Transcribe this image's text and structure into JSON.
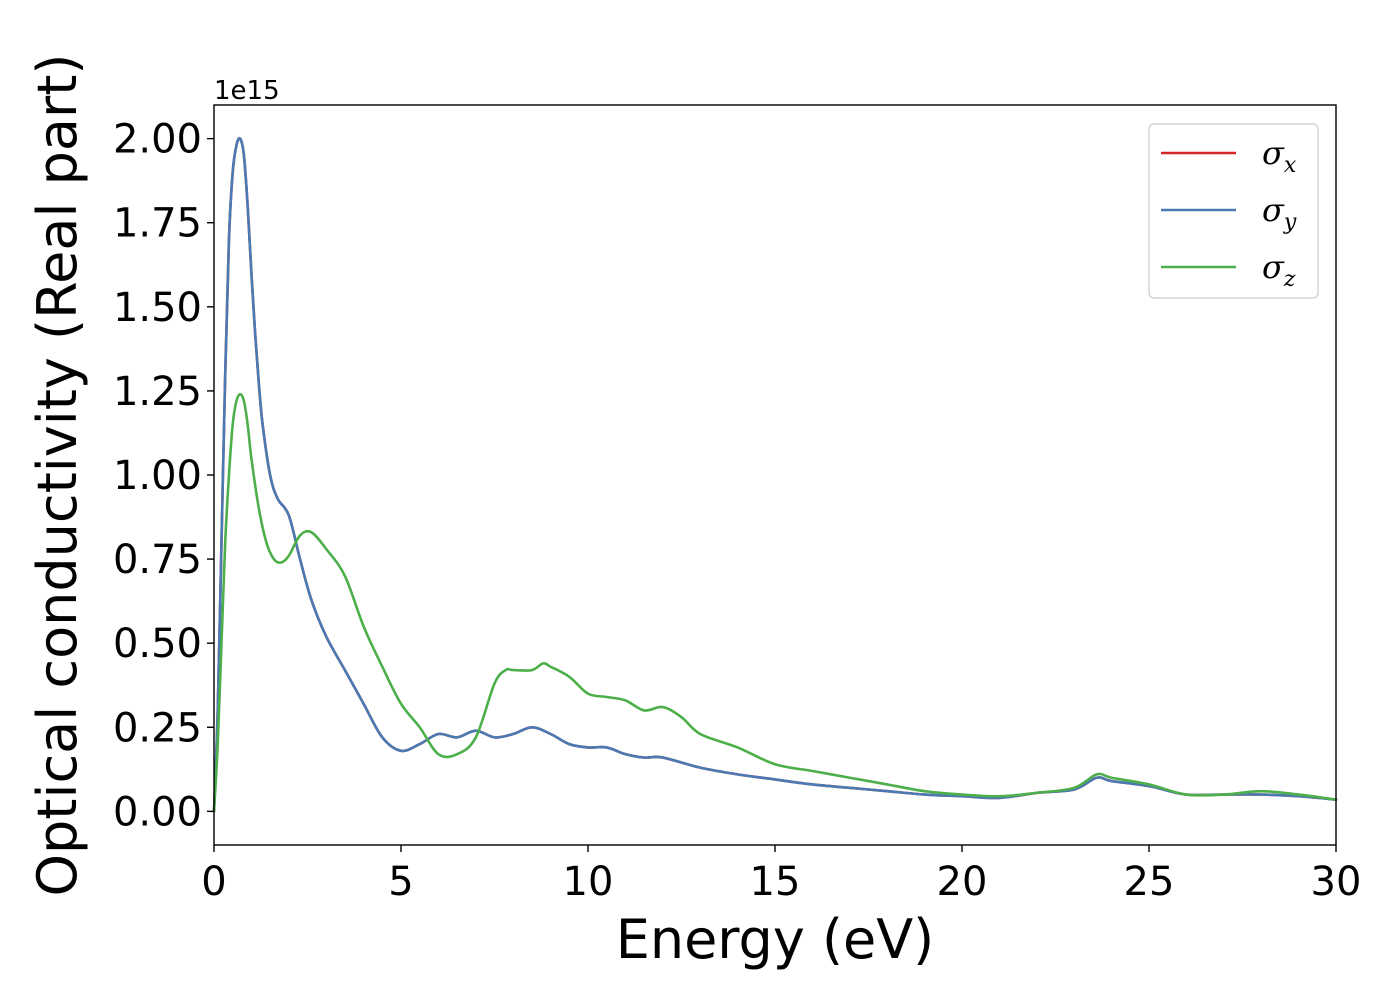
{
  "chart_data": {
    "type": "line",
    "title": "",
    "xlabel": "Energy (eV)",
    "ylabel": "Optical conductivity (Real part)",
    "y_offset_label": "1e15",
    "xlim": [
      0,
      30
    ],
    "ylim": [
      -0.1,
      2.1
    ],
    "xticks": [
      0,
      5,
      10,
      15,
      20,
      25,
      30
    ],
    "xtick_labels": [
      "0",
      "5",
      "10",
      "15",
      "20",
      "25",
      "30"
    ],
    "yticks": [
      0.0,
      0.25,
      0.5,
      0.75,
      1.0,
      1.25,
      1.5,
      1.75,
      2.0
    ],
    "ytick_labels": [
      "0.00",
      "0.25",
      "0.50",
      "0.75",
      "1.00",
      "1.25",
      "1.50",
      "1.75",
      "2.00"
    ],
    "grid": false,
    "legend_position": "top-right",
    "series": [
      {
        "name": "σx",
        "legend_base": "σ",
        "legend_sub": "x",
        "color": "#d62728",
        "x": [
          0,
          0.1,
          0.2,
          0.3,
          0.4,
          0.5,
          0.6,
          0.7,
          0.8,
          0.9,
          1.0,
          1.1,
          1.2,
          1.3,
          1.5,
          1.7,
          2.0,
          2.3,
          2.6,
          3.0,
          3.5,
          4.0,
          4.5,
          5.0,
          5.5,
          6.0,
          6.5,
          7.0,
          7.5,
          8.0,
          8.5,
          9.0,
          9.5,
          10.0,
          10.5,
          11.0,
          11.5,
          12.0,
          13.0,
          14.0,
          15.0,
          16.0,
          17.0,
          18.0,
          19.0,
          20.0,
          21.0,
          22.0,
          23.0,
          23.6,
          24.0,
          25.0,
          26.0,
          27.0,
          28.0,
          29.0,
          30.0
        ],
        "values": [
          0.0,
          0.3,
          0.8,
          1.3,
          1.7,
          1.9,
          1.98,
          2.0,
          1.95,
          1.8,
          1.6,
          1.42,
          1.27,
          1.15,
          1.0,
          0.93,
          0.88,
          0.75,
          0.63,
          0.52,
          0.42,
          0.32,
          0.22,
          0.18,
          0.2,
          0.23,
          0.22,
          0.24,
          0.22,
          0.23,
          0.25,
          0.23,
          0.2,
          0.19,
          0.19,
          0.17,
          0.16,
          0.16,
          0.13,
          0.11,
          0.095,
          0.08,
          0.07,
          0.06,
          0.05,
          0.045,
          0.04,
          0.055,
          0.065,
          0.1,
          0.09,
          0.075,
          0.05,
          0.05,
          0.05,
          0.045,
          0.035
        ]
      },
      {
        "name": "σy",
        "legend_base": "σ",
        "legend_sub": "y",
        "color": "#4a7ab3",
        "x": [
          0,
          0.1,
          0.2,
          0.3,
          0.4,
          0.5,
          0.6,
          0.7,
          0.8,
          0.9,
          1.0,
          1.1,
          1.2,
          1.3,
          1.5,
          1.7,
          2.0,
          2.3,
          2.6,
          3.0,
          3.5,
          4.0,
          4.5,
          5.0,
          5.5,
          6.0,
          6.5,
          7.0,
          7.5,
          8.0,
          8.5,
          9.0,
          9.5,
          10.0,
          10.5,
          11.0,
          11.5,
          12.0,
          13.0,
          14.0,
          15.0,
          16.0,
          17.0,
          18.0,
          19.0,
          20.0,
          21.0,
          22.0,
          23.0,
          23.6,
          24.0,
          25.0,
          26.0,
          27.0,
          28.0,
          29.0,
          30.0
        ],
        "values": [
          0.0,
          0.3,
          0.8,
          1.3,
          1.7,
          1.9,
          1.98,
          2.0,
          1.95,
          1.8,
          1.6,
          1.42,
          1.27,
          1.15,
          1.0,
          0.93,
          0.88,
          0.75,
          0.63,
          0.52,
          0.42,
          0.32,
          0.22,
          0.18,
          0.2,
          0.23,
          0.22,
          0.24,
          0.22,
          0.23,
          0.25,
          0.23,
          0.2,
          0.19,
          0.19,
          0.17,
          0.16,
          0.16,
          0.13,
          0.11,
          0.095,
          0.08,
          0.07,
          0.06,
          0.05,
          0.045,
          0.04,
          0.055,
          0.065,
          0.1,
          0.09,
          0.075,
          0.05,
          0.05,
          0.05,
          0.045,
          0.035
        ]
      },
      {
        "name": "σz",
        "legend_base": "σ",
        "legend_sub": "z",
        "color": "#4daf4a",
        "x": [
          0,
          0.1,
          0.2,
          0.3,
          0.4,
          0.5,
          0.6,
          0.7,
          0.8,
          0.9,
          1.0,
          1.2,
          1.4,
          1.6,
          1.8,
          2.0,
          2.3,
          2.6,
          3.0,
          3.5,
          4.0,
          4.5,
          5.0,
          5.5,
          6.0,
          6.5,
          7.0,
          7.5,
          7.8,
          8.0,
          8.5,
          8.8,
          9.0,
          9.5,
          10.0,
          10.5,
          11.0,
          11.5,
          12.0,
          12.5,
          13.0,
          14.0,
          15.0,
          16.0,
          17.0,
          18.0,
          19.0,
          20.0,
          21.0,
          22.0,
          23.0,
          23.6,
          24.0,
          25.0,
          26.0,
          27.0,
          28.0,
          29.0,
          30.0
        ],
        "values": [
          0.0,
          0.2,
          0.5,
          0.8,
          1.0,
          1.15,
          1.22,
          1.24,
          1.22,
          1.15,
          1.05,
          0.9,
          0.8,
          0.75,
          0.74,
          0.76,
          0.82,
          0.83,
          0.78,
          0.7,
          0.55,
          0.43,
          0.32,
          0.25,
          0.17,
          0.17,
          0.22,
          0.38,
          0.42,
          0.42,
          0.42,
          0.44,
          0.43,
          0.4,
          0.35,
          0.34,
          0.33,
          0.3,
          0.31,
          0.28,
          0.23,
          0.19,
          0.14,
          0.12,
          0.1,
          0.08,
          0.06,
          0.05,
          0.045,
          0.055,
          0.07,
          0.11,
          0.1,
          0.08,
          0.05,
          0.05,
          0.06,
          0.05,
          0.035
        ]
      }
    ]
  }
}
